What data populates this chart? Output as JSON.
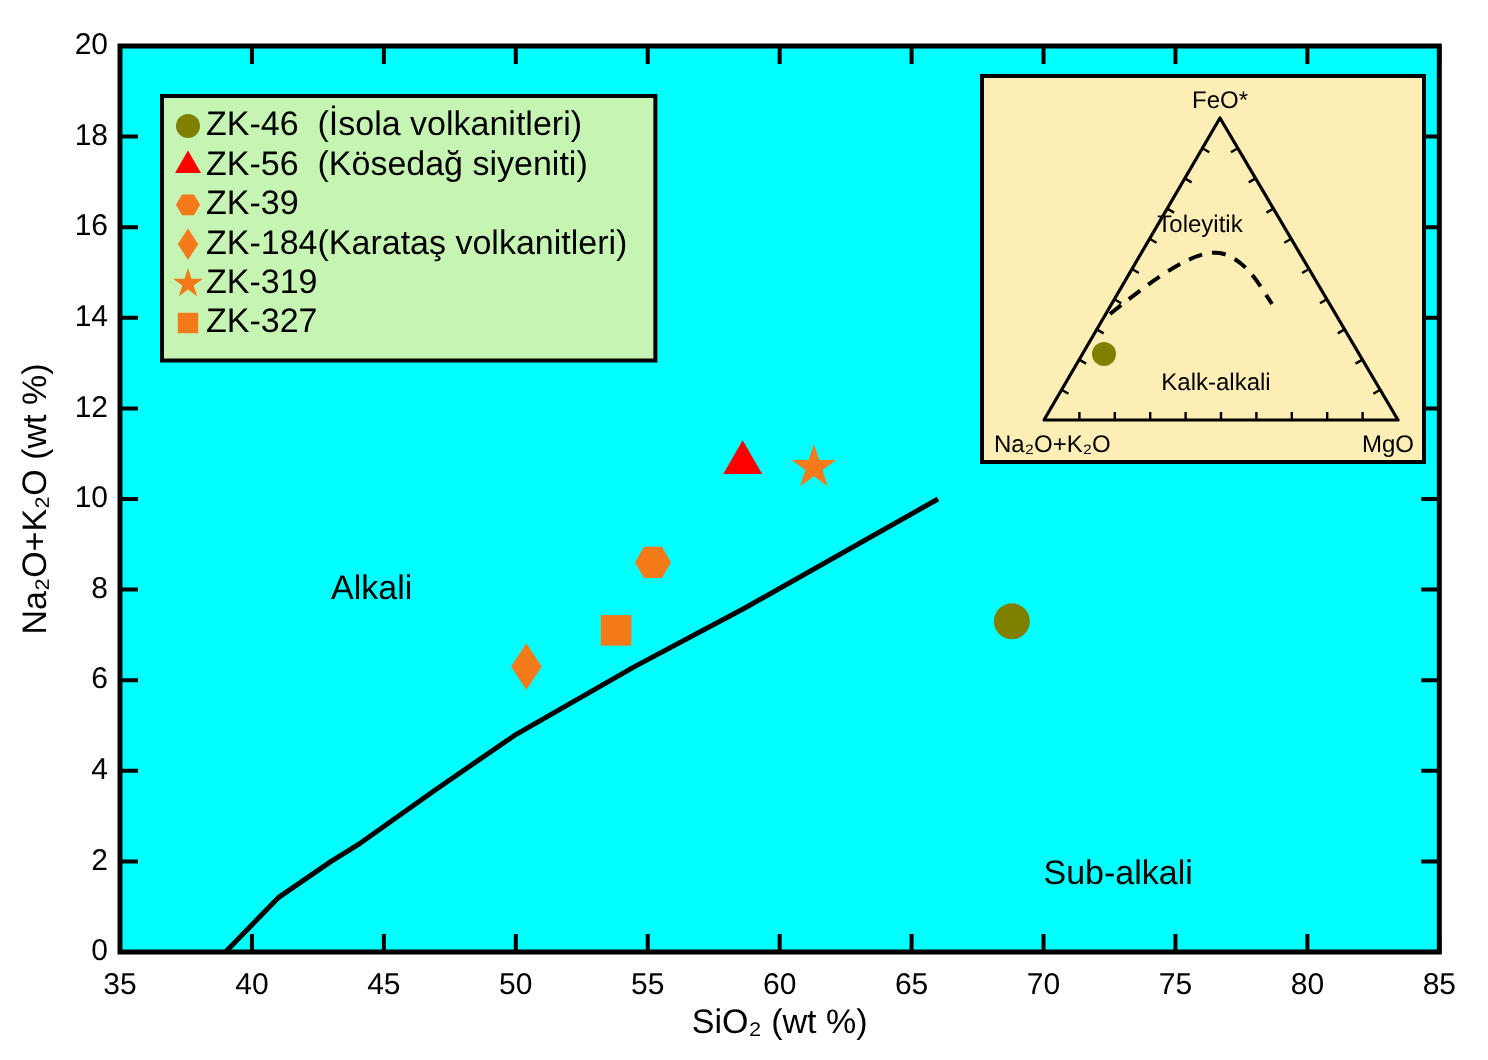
{
  "chart_data": [
    {
      "type": "scatter",
      "xlabel": "SiO₂ (wt %)",
      "ylabel": "Na₂O+K₂O (wt %)",
      "xlim": [
        35,
        85
      ],
      "xticks": [
        35,
        40,
        45,
        50,
        55,
        60,
        65,
        70,
        75,
        80,
        85
      ],
      "ylim": [
        0,
        20
      ],
      "yticks": [
        0,
        2,
        4,
        6,
        8,
        10,
        12,
        14,
        16,
        18,
        20
      ],
      "grid": false,
      "legend": "top left",
      "series": [
        {
          "name": "ZK-46  (İsola volkanitleri)",
          "color": "#808000",
          "marker": "circle",
          "x": [
            68.8
          ],
          "values": [
            7.3
          ]
        },
        {
          "name": "ZK-56  (Kösedağ siyeniti)",
          "color": "#ff0000",
          "marker": "triangle",
          "x": [
            58.6
          ],
          "values": [
            10.8
          ]
        },
        {
          "name": "ZK-39",
          "color": "#f47a1a",
          "x": [
            55.2
          ],
          "values": [
            8.6
          ]
        },
        {
          "name": "ZK-184(Karataş volkanitleri)",
          "color": "#f47a1a",
          "marker": "diamond",
          "x": [
            50.4
          ],
          "values": [
            6.3
          ]
        },
        {
          "name": "ZK-319",
          "color": "#f47a1a",
          "marker": "star",
          "x": [
            61.3
          ],
          "values": [
            10.7
          ]
        },
        {
          "name": "ZK-327",
          "color": "#f47a1a",
          "marker": "square",
          "x": [
            53.8
          ],
          "values": [
            7.1
          ]
        },
        {
          "type": "line",
          "color": "#000000",
          "marker": "none",
          "x": [
            39,
            41,
            43,
            44.1,
            47,
            50,
            54.5,
            58.7,
            66
          ],
          "values": [
            0,
            1.2,
            2,
            2.4,
            3.6,
            4.8,
            6.3,
            7.6,
            10
          ]
        }
      ],
      "annotations": [
        "Alkali",
        "Sub-alkali"
      ]
    },
    {
      "type": "other",
      "annotations": [
        "FeO*",
        "Toleyitik",
        "Kalk-alkali",
        "Na₂O+K₂O",
        "MgO"
      ]
    }
  ]
}
